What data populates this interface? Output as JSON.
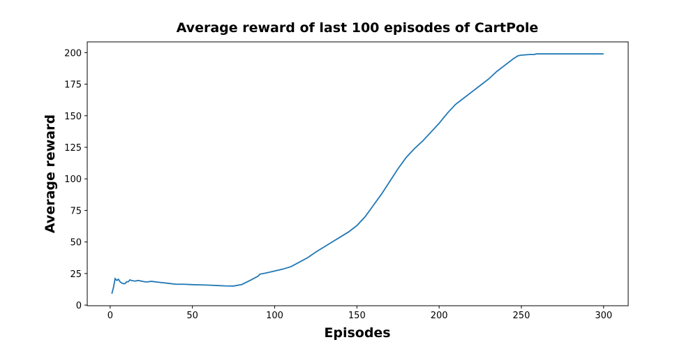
{
  "chart_data": {
    "type": "line",
    "title": "Average reward of last 100 episodes of CartPole",
    "xlabel": "Episodes",
    "ylabel": "Average reward",
    "x": [
      1,
      2,
      3,
      4,
      5,
      6,
      7,
      8,
      9,
      10,
      11,
      12,
      13,
      15,
      17,
      20,
      22,
      25,
      30,
      35,
      40,
      45,
      50,
      55,
      60,
      65,
      70,
      75,
      80,
      85,
      90,
      91,
      95,
      100,
      105,
      110,
      115,
      120,
      125,
      130,
      135,
      140,
      145,
      150,
      155,
      160,
      165,
      170,
      175,
      180,
      185,
      190,
      195,
      200,
      205,
      210,
      215,
      220,
      225,
      230,
      235,
      240,
      245,
      248,
      250,
      255,
      258,
      259,
      300
    ],
    "series": [
      {
        "name": "reward",
        "color": "#1f77b4",
        "values": [
          9,
          14,
          21,
          19.5,
          20.5,
          18.5,
          17.5,
          17,
          17,
          18.5,
          18.5,
          20,
          19.5,
          19,
          19.5,
          18.7,
          18.3,
          18.8,
          18,
          17.3,
          16.5,
          16.5,
          16.2,
          16,
          15.8,
          15.5,
          15.2,
          15.1,
          16.3,
          19.5,
          23,
          24.5,
          25.5,
          27,
          28.5,
          30.5,
          34,
          37.5,
          42,
          46,
          50,
          54,
          58,
          63,
          70,
          79,
          88,
          98,
          108,
          117,
          124,
          130,
          137,
          144,
          152,
          159,
          164,
          169,
          174,
          179,
          185,
          190,
          195,
          197.5,
          198,
          198.5,
          198.5,
          199,
          199
        ]
      }
    ],
    "xlim": [
      -13.95,
      314.95
    ],
    "ylim": [
      -0.5,
      208.5
    ],
    "xticks": [
      0,
      50,
      100,
      150,
      200,
      250,
      300
    ],
    "yticks": [
      0,
      25,
      50,
      75,
      100,
      125,
      150,
      175,
      200
    ],
    "grid": false
  }
}
